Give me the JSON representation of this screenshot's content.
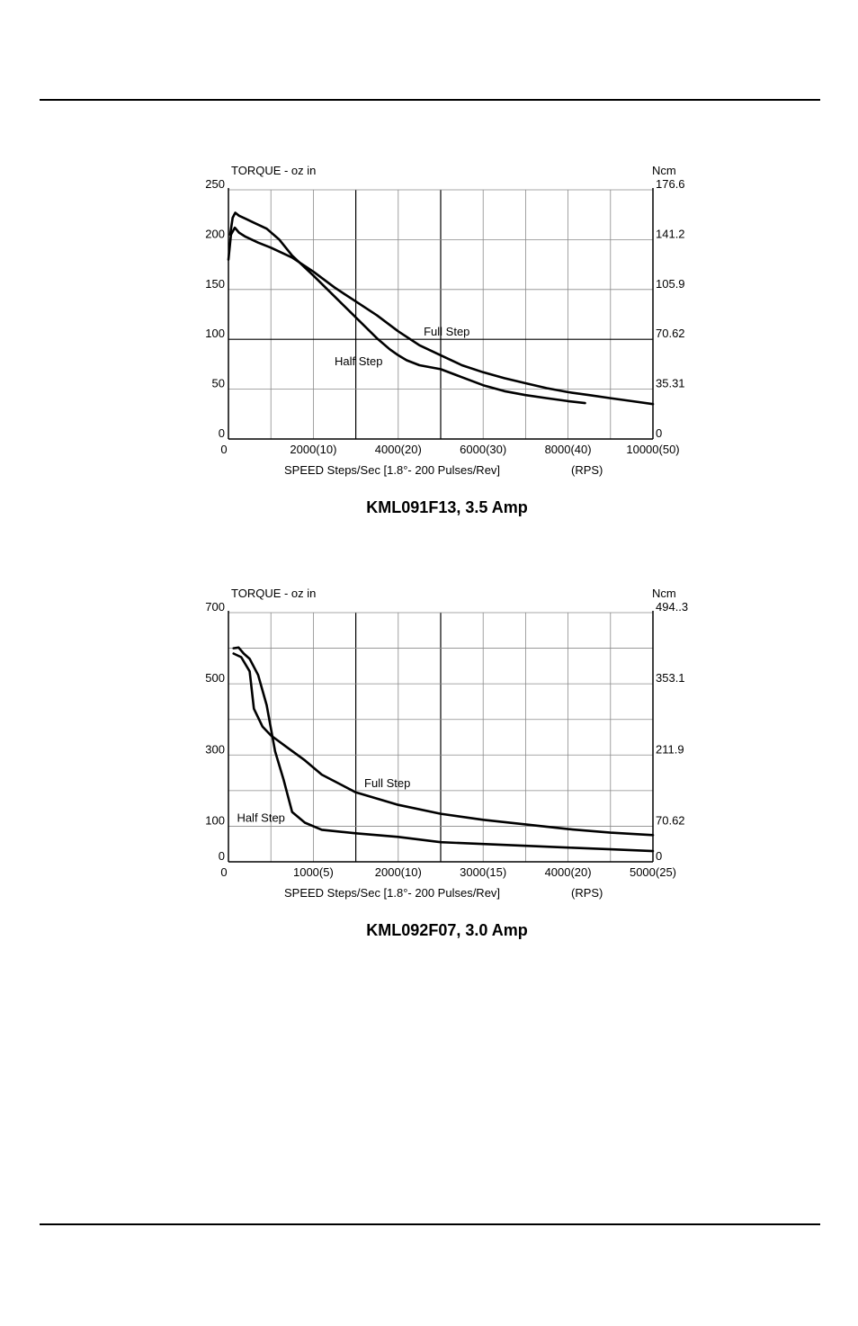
{
  "chart_data": [
    {
      "type": "line",
      "title": "KML091F13, 3.5 Amp",
      "ylabel": "TORQUE - oz in",
      "ylabel_right": "Ncm",
      "xlabel": "SPEED Steps/Sec [1.8°- 200 Pulses/Rev]",
      "xlabel_unit": "(RPS)",
      "xlim": [
        0,
        10000
      ],
      "ylim": [
        0,
        250
      ],
      "x_ticks": [
        {
          "value": 0,
          "label": "0"
        },
        {
          "value": 2000,
          "label": "2000(10)"
        },
        {
          "value": 4000,
          "label": "4000(20)"
        },
        {
          "value": 6000,
          "label": "6000(30)"
        },
        {
          "value": 8000,
          "label": "8000(40)"
        },
        {
          "value": 10000,
          "label": "10000(50)"
        }
      ],
      "y_ticks_left": [
        {
          "value": 0,
          "label": "0"
        },
        {
          "value": 50,
          "label": "50"
        },
        {
          "value": 100,
          "label": "100"
        },
        {
          "value": 150,
          "label": "150"
        },
        {
          "value": 200,
          "label": "200"
        },
        {
          "value": 250,
          "label": "250"
        }
      ],
      "y_ticks_right": [
        {
          "value": 0,
          "label": "0"
        },
        {
          "value": 50,
          "label": "35.31"
        },
        {
          "value": 100,
          "label": "70.62"
        },
        {
          "value": 150,
          "label": "105.9"
        },
        {
          "value": 200,
          "label": "141.2"
        },
        {
          "value": 250,
          "label": "176.6"
        }
      ],
      "grid_x": [
        1000,
        2000,
        3000,
        4000,
        5000,
        6000,
        7000,
        8000,
        9000,
        10000
      ],
      "grid_y": [
        50,
        100,
        150,
        200,
        250
      ],
      "major_grid_x": [
        3000,
        5000
      ],
      "major_grid_y": [
        100
      ],
      "grid": true,
      "series": [
        {
          "name": "Full Step",
          "label_at": [
            4600,
            104
          ],
          "x": [
            0,
            60,
            150,
            250,
            400,
            700,
            1000,
            1500,
            2000,
            2500,
            3000,
            3500,
            4000,
            4500,
            5000,
            5500,
            6000,
            6500,
            7000,
            7500,
            8000,
            8500,
            9000,
            9500,
            10000
          ],
          "y": [
            180,
            205,
            212,
            207,
            203,
            197,
            192,
            182,
            168,
            152,
            138,
            124,
            108,
            94,
            84,
            74,
            67,
            61,
            56,
            51,
            47,
            44,
            41,
            38,
            35
          ]
        },
        {
          "name": "Half Step",
          "label_at": [
            2500,
            74
          ],
          "x": [
            40,
            100,
            160,
            250,
            400,
            600,
            900,
            1200,
            1500,
            2000,
            2500,
            3000,
            3500,
            3800,
            4000,
            4200,
            4500,
            5000,
            5500,
            6000,
            6500,
            7000,
            7500,
            8000,
            8400
          ],
          "y": [
            205,
            222,
            227,
            224,
            221,
            217,
            211,
            200,
            184,
            164,
            143,
            122,
            101,
            90,
            84,
            79,
            74,
            70,
            62,
            54,
            48,
            44,
            41,
            38,
            36
          ]
        }
      ]
    },
    {
      "type": "line",
      "title": "KML092F07, 3.0 Amp",
      "ylabel": "TORQUE - oz in",
      "ylabel_right": "Ncm",
      "xlabel": "SPEED Steps/Sec [1.8°- 200 Pulses/Rev]",
      "xlabel_unit": "(RPS)",
      "xlim": [
        0,
        5000
      ],
      "ylim": [
        0,
        700
      ],
      "x_ticks": [
        {
          "value": 0,
          "label": "0"
        },
        {
          "value": 1000,
          "label": "1000(5)"
        },
        {
          "value": 2000,
          "label": "2000(10)"
        },
        {
          "value": 3000,
          "label": "3000(15)"
        },
        {
          "value": 4000,
          "label": "4000(20)"
        },
        {
          "value": 5000,
          "label": "5000(25)"
        }
      ],
      "y_ticks_left": [
        {
          "value": 0,
          "label": "0"
        },
        {
          "value": 100,
          "label": "100"
        },
        {
          "value": 300,
          "label": "300"
        },
        {
          "value": 500,
          "label": "500"
        },
        {
          "value": 700,
          "label": "700"
        }
      ],
      "y_ticks_right": [
        {
          "value": 0,
          "label": "0"
        },
        {
          "value": 100,
          "label": "70.62"
        },
        {
          "value": 300,
          "label": "211.9"
        },
        {
          "value": 500,
          "label": "353.1"
        },
        {
          "value": 700,
          "label": "494..3"
        }
      ],
      "grid_x": [
        500,
        1000,
        1500,
        2000,
        2500,
        3000,
        3500,
        4000,
        4500,
        5000
      ],
      "grid_y": [
        100,
        200,
        300,
        400,
        500,
        600,
        700
      ],
      "major_grid_x": [
        1500,
        2500
      ],
      "major_grid_y": [],
      "grid": true,
      "series": [
        {
          "name": "Full Step",
          "label_at": [
            1600,
            210
          ],
          "x": [
            60,
            150,
            250,
            300,
            400,
            500,
            700,
            900,
            1100,
            1500,
            2000,
            2500,
            3000,
            3500,
            4000,
            4500,
            5000
          ],
          "y": [
            585,
            575,
            535,
            430,
            380,
            355,
            320,
            285,
            245,
            195,
            160,
            135,
            118,
            105,
            92,
            82,
            75
          ]
        },
        {
          "name": "Half Step",
          "label_at": [
            100,
            112
          ],
          "x": [
            60,
            120,
            180,
            250,
            350,
            450,
            550,
            650,
            750,
            900,
            1100,
            1500,
            2000,
            2500,
            3000,
            3500,
            4000,
            4500,
            5000
          ],
          "y": [
            600,
            602,
            585,
            570,
            525,
            440,
            310,
            230,
            140,
            110,
            90,
            80,
            70,
            55,
            50,
            45,
            40,
            35,
            30
          ]
        }
      ]
    }
  ]
}
